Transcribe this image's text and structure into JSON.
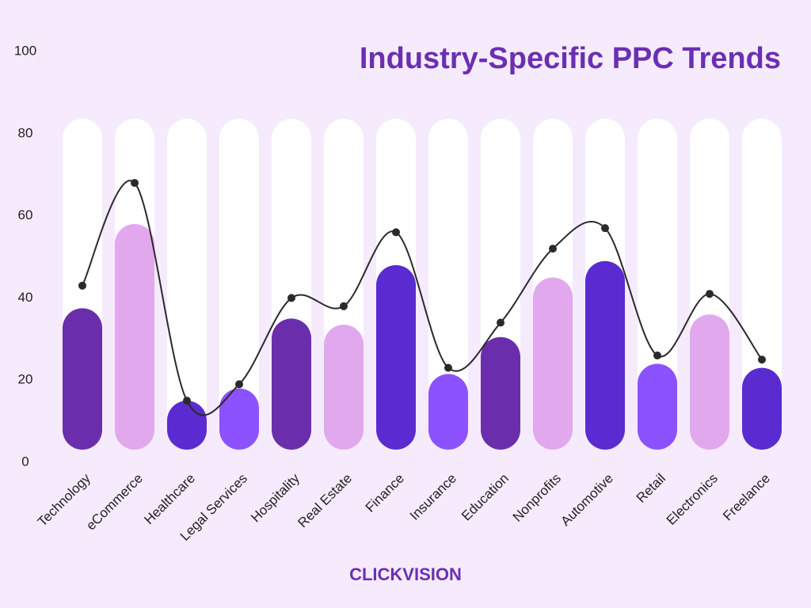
{
  "chart_data": {
    "type": "bar",
    "title": "Industry-Specific PPC Trends",
    "categories": [
      "Technology",
      "eCommerce",
      "Healthcare",
      "Legal Services",
      "Hospitality",
      "Real Estate",
      "Finance",
      "Insurance",
      "Education",
      "Nonprofits",
      "Automotive",
      "Retail",
      "Electronics",
      "Freelance"
    ],
    "series": [
      {
        "type": "bar",
        "colors": [
          "#6a2eac",
          "#e2a8ee",
          "#5a2bd0",
          "#8c52ff",
          "#6a2eac",
          "#e2a8ee",
          "#5a2bd0",
          "#8c52ff",
          "#6a2eac",
          "#e2a8ee",
          "#5a2bd0",
          "#8c52ff",
          "#e2a8ee",
          "#5a2bd0"
        ],
        "values": [
          37.5,
          58,
          15,
          18,
          35,
          33.5,
          48,
          21.5,
          30.5,
          45,
          49,
          24,
          36,
          23
        ]
      },
      {
        "type": "line",
        "color": "#2a2a2a",
        "values": [
          43,
          68,
          15,
          19,
          40,
          38,
          56,
          23,
          34,
          52,
          57,
          26,
          41,
          25
        ]
      }
    ],
    "ylim": [
      0,
      100
    ],
    "yticks": [
      0,
      20,
      40,
      60,
      80,
      100
    ]
  },
  "brand": "CLICKVISION"
}
